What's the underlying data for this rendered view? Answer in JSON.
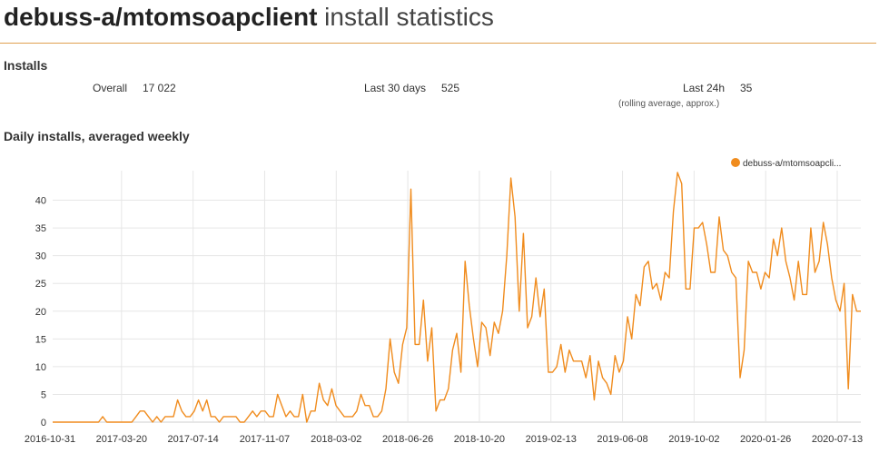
{
  "header": {
    "package": "debuss-a/mtomsoapclient",
    "suffix": " install statistics"
  },
  "installs": {
    "heading": "Installs",
    "overall_label": "Overall",
    "overall_value": "17 022",
    "last30_label": "Last 30 days",
    "last30_value": "525",
    "last24_label": "Last 24h",
    "last24_value": "35",
    "last24_note": "(rolling average, approx.)"
  },
  "chart_section": {
    "heading": "Daily installs, averaged weekly"
  },
  "colors": {
    "accent": "#f08c1e",
    "grid": "#e6e6e6"
  },
  "chart_data": {
    "type": "line",
    "legend": "debuss-a/mtomsoapcli...",
    "legend_position": "top-right",
    "grid": true,
    "ylim": [
      0,
      45
    ],
    "yticks": [
      0,
      5,
      10,
      15,
      20,
      25,
      30,
      35,
      40
    ],
    "xtick_labels": [
      "2016-10-31",
      "2017-03-20",
      "2017-07-14",
      "2017-11-07",
      "2018-03-02",
      "2018-06-26",
      "2018-10-20",
      "2019-02-13",
      "2019-06-08",
      "2019-10-02",
      "2020-01-26",
      "2020-07-13"
    ],
    "series": [
      {
        "name": "debuss-a/mtomsoapcli...",
        "values": [
          0,
          0,
          0,
          0,
          0,
          0,
          0,
          0,
          0,
          0,
          0,
          0,
          1,
          0,
          0,
          0,
          0,
          0,
          0,
          0,
          1,
          2,
          2,
          1,
          0,
          1,
          0,
          1,
          1,
          1,
          4,
          2,
          1,
          1,
          2,
          4,
          2,
          4,
          1,
          1,
          0,
          1,
          1,
          1,
          1,
          0,
          0,
          1,
          2,
          1,
          2,
          2,
          1,
          1,
          5,
          3,
          1,
          2,
          1,
          1,
          5,
          0,
          2,
          2,
          7,
          4,
          3,
          6,
          3,
          2,
          1,
          1,
          1,
          2,
          5,
          3,
          3,
          1,
          1,
          2,
          6,
          15,
          9,
          7,
          14,
          17,
          42,
          14,
          14,
          22,
          11,
          17,
          2,
          4,
          4,
          6,
          13,
          16,
          9,
          29,
          21,
          15,
          10,
          18,
          17,
          12,
          18,
          16,
          20,
          30,
          44,
          37,
          20,
          34,
          17,
          19,
          26,
          19,
          24,
          9,
          9,
          10,
          14,
          9,
          13,
          11,
          11,
          11,
          8,
          12,
          4,
          11,
          8,
          7,
          5,
          12,
          9,
          11,
          19,
          15,
          23,
          21,
          28,
          29,
          24,
          25,
          22,
          27,
          26,
          38,
          45,
          43,
          24,
          24,
          35,
          35,
          36,
          32,
          27,
          27,
          37,
          31,
          30,
          27,
          26,
          8,
          13,
          29,
          27,
          27,
          24,
          27,
          26,
          33,
          30,
          35,
          29,
          26,
          22,
          29,
          23,
          23,
          35,
          27,
          29,
          36,
          32,
          26,
          22,
          20,
          25,
          6,
          23,
          20,
          20
        ]
      }
    ]
  }
}
